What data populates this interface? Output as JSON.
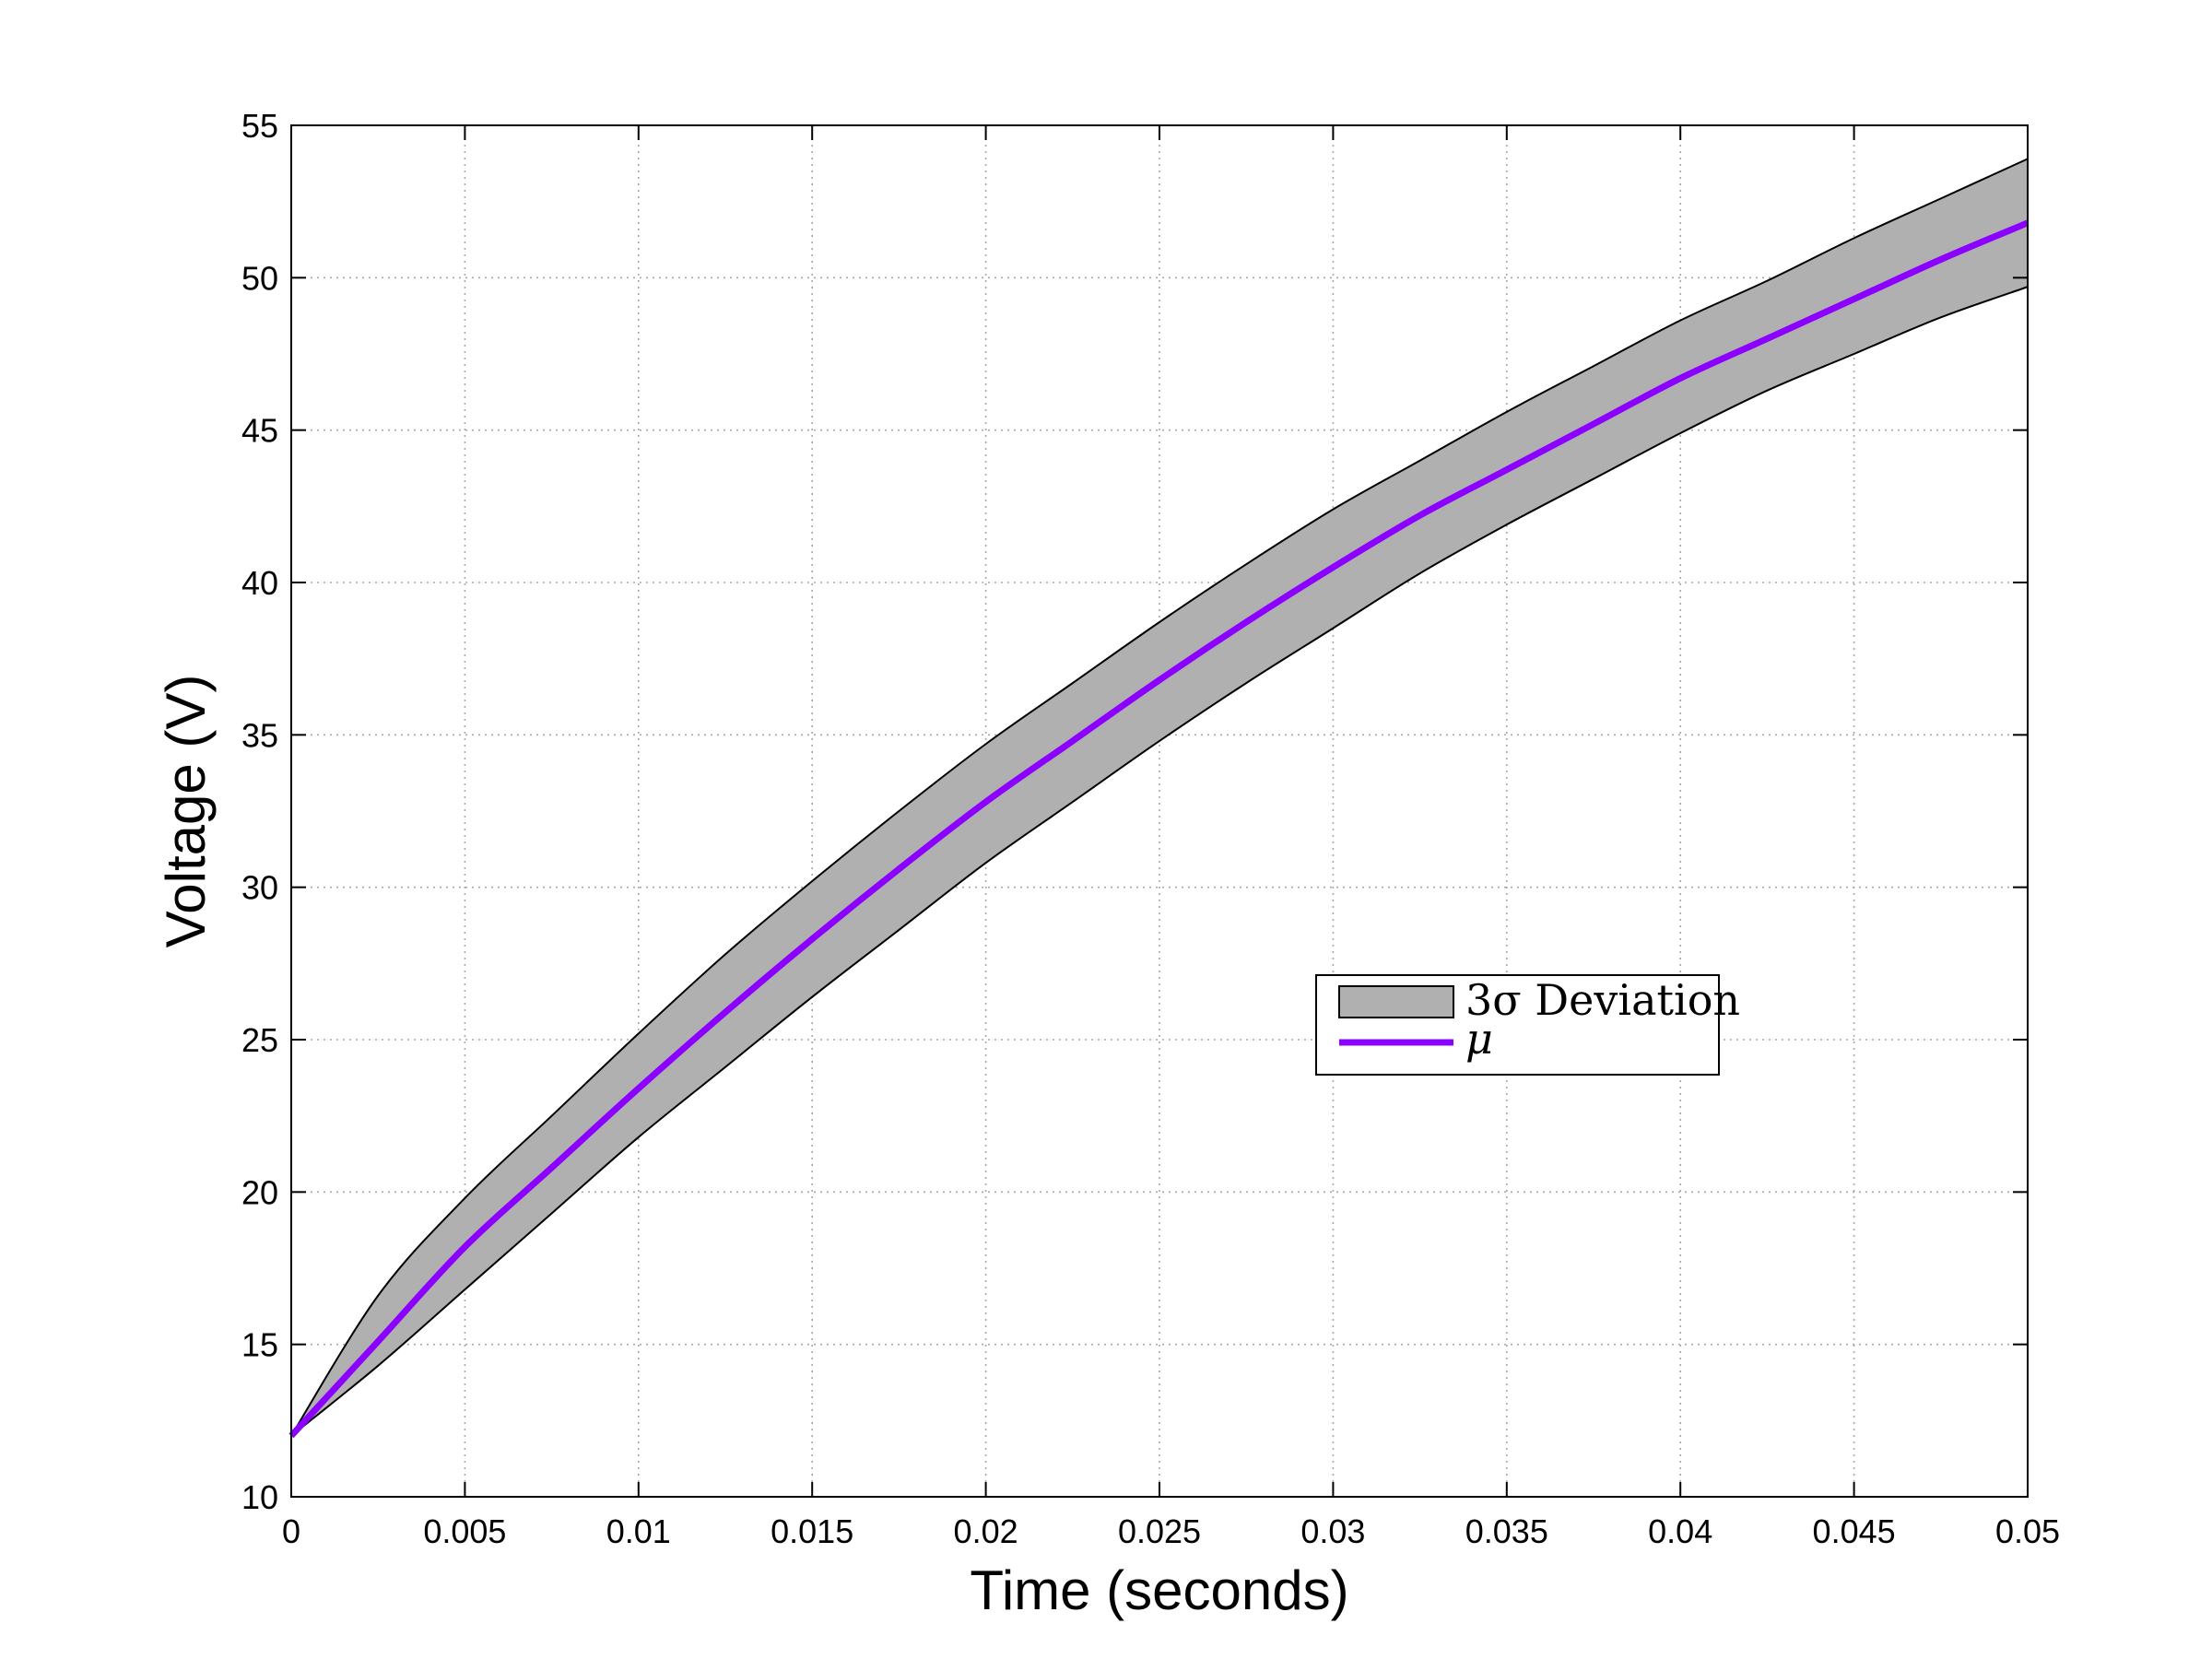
{
  "chart_data": {
    "type": "area",
    "title": "",
    "xlabel": "Time (seconds)",
    "ylabel": "Voltage (V)",
    "xlim": [
      0,
      0.05
    ],
    "ylim": [
      10,
      55
    ],
    "x_ticks": [
      0,
      0.005,
      0.01,
      0.015,
      0.02,
      0.025,
      0.03,
      0.035,
      0.04,
      0.045,
      0.05
    ],
    "x_tick_labels": [
      "0",
      "0.005",
      "0.01",
      "0.015",
      "0.02",
      "0.025",
      "0.03",
      "0.035",
      "0.04",
      "0.045",
      "0.05"
    ],
    "y_ticks": [
      10,
      15,
      20,
      25,
      30,
      35,
      40,
      45,
      50,
      55
    ],
    "y_tick_labels": [
      "10",
      "15",
      "20",
      "25",
      "30",
      "35",
      "40",
      "45",
      "50",
      "55"
    ],
    "grid": true,
    "legend_position": "center-right",
    "x": [
      0,
      0.0025,
      0.005,
      0.0075,
      0.01,
      0.0125,
      0.015,
      0.0175,
      0.02,
      0.0225,
      0.025,
      0.0275,
      0.03,
      0.0325,
      0.035,
      0.0375,
      0.04,
      0.0425,
      0.045,
      0.0475,
      0.05
    ],
    "series": [
      {
        "name": "μ",
        "label_math": "\\mu",
        "kind": "line",
        "color": "#8b00ff",
        "values": [
          12.0,
          15.1,
          18.2,
          20.8,
          23.4,
          25.9,
          28.3,
          30.6,
          32.8,
          34.8,
          36.8,
          38.7,
          40.5,
          42.2,
          43.7,
          45.2,
          46.7,
          48.0,
          49.3,
          50.6,
          51.8
        ]
      },
      {
        "name": "3σ Deviation",
        "label_math": "3\\sigma",
        "kind": "band",
        "color": "#b0b0b0",
        "upper": [
          12.0,
          16.6,
          19.8,
          22.5,
          25.2,
          27.8,
          30.2,
          32.5,
          34.7,
          36.7,
          38.7,
          40.6,
          42.4,
          44.0,
          45.6,
          47.1,
          48.6,
          49.9,
          51.3,
          52.6,
          53.9
        ],
        "lower": [
          12.0,
          14.3,
          16.8,
          19.3,
          21.8,
          24.1,
          26.4,
          28.6,
          30.8,
          32.8,
          34.8,
          36.7,
          38.5,
          40.3,
          41.9,
          43.4,
          44.9,
          46.3,
          47.5,
          48.7,
          49.7
        ]
      }
    ]
  },
  "legend": {
    "items": [
      {
        "text": "3σ Deviation",
        "swatch": "#b0b0b0"
      },
      {
        "text": "μ",
        "swatch": "#8b00ff"
      }
    ]
  }
}
